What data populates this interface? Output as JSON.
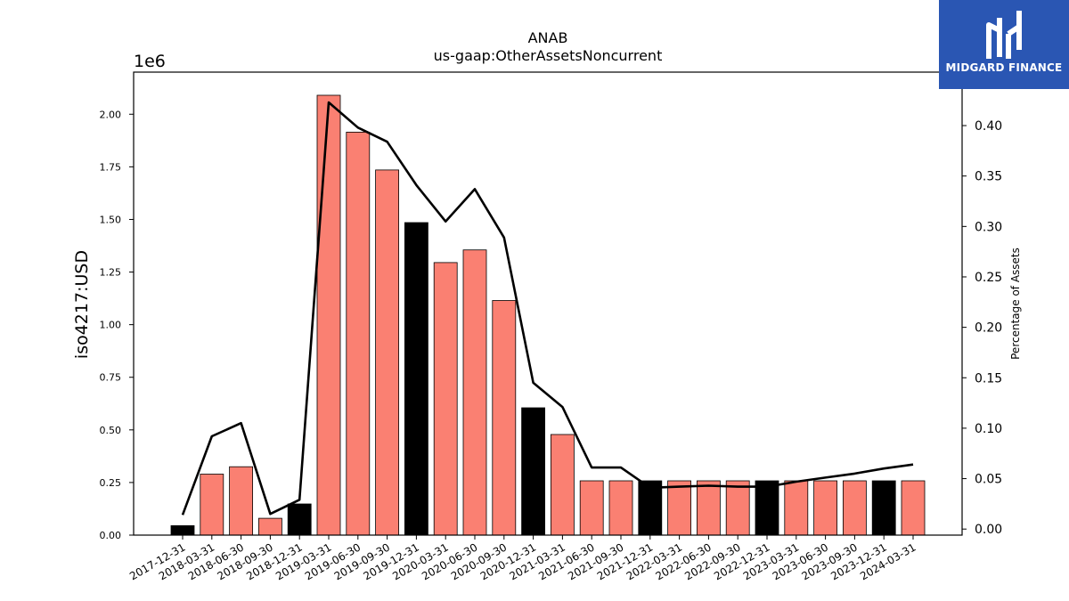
{
  "chart_data": {
    "type": "bar",
    "title": "ANAB",
    "subtitle": "us-gaap:OtherAssetsNoncurrent",
    "ylabel": "iso4217:USD",
    "y2label": "Percentage of Assets",
    "y_offset_text": "1e6",
    "ylim": [
      0,
      2200000
    ],
    "y2lim": [
      -0.006,
      0.453
    ],
    "yticks": [
      0,
      250000,
      500000,
      750000,
      1000000,
      1250000,
      1500000,
      1750000,
      2000000
    ],
    "yticklabels": [
      "0.00",
      "0.25",
      "0.50",
      "0.75",
      "1.00",
      "1.25",
      "1.50",
      "1.75",
      "2.00"
    ],
    "y2ticks": [
      0,
      0.05,
      0.1,
      0.15,
      0.2,
      0.25,
      0.3,
      0.35,
      0.4
    ],
    "y2ticklabels": [
      "0.00",
      "0.05",
      "0.10",
      "0.15",
      "0.20",
      "0.25",
      "0.30",
      "0.35",
      "0.40"
    ],
    "categories": [
      "2017-12-31",
      "2018-03-31",
      "2018-06-30",
      "2018-09-30",
      "2018-12-31",
      "2019-03-31",
      "2019-06-30",
      "2019-09-30",
      "2019-12-31",
      "2020-03-31",
      "2020-06-30",
      "2020-09-30",
      "2020-12-31",
      "2021-03-31",
      "2021-06-30",
      "2021-09-30",
      "2021-12-31",
      "2022-03-31",
      "2022-06-30",
      "2022-09-30",
      "2022-12-31",
      "2023-03-31",
      "2023-06-30",
      "2023-09-30",
      "2023-12-31",
      "2024-03-31"
    ],
    "series": [
      {
        "kind": "bar",
        "values": [
          45000,
          290000,
          325000,
          80000,
          148000,
          2090000,
          1915000,
          1735000,
          1485000,
          1295000,
          1355000,
          1115000,
          605000,
          478000,
          258000,
          258000,
          258000,
          258000,
          258000,
          258000,
          258000,
          258000,
          258000,
          258000,
          258000,
          258000
        ],
        "colors": [
          "#000000",
          "#fa8072",
          "#fa8072",
          "#fa8072",
          "#000000",
          "#fa8072",
          "#fa8072",
          "#fa8072",
          "#000000",
          "#fa8072",
          "#fa8072",
          "#fa8072",
          "#000000",
          "#fa8072",
          "#fa8072",
          "#fa8072",
          "#000000",
          "#fa8072",
          "#fa8072",
          "#fa8072",
          "#000000",
          "#fa8072",
          "#fa8072",
          "#fa8072",
          "#000000",
          "#fa8072"
        ]
      },
      {
        "kind": "line",
        "axis": "right",
        "color": "#000000",
        "values": [
          0.014,
          0.092,
          0.105,
          0.015,
          0.029,
          0.423,
          0.398,
          0.384,
          0.341,
          0.305,
          0.337,
          0.289,
          0.145,
          0.121,
          0.061,
          0.061,
          0.041,
          0.042,
          0.043,
          0.042,
          0.042,
          0.047,
          0.051,
          0.055,
          0.06,
          0.064
        ]
      }
    ],
    "grid": false
  },
  "logo": {
    "text": "MIDGARD FINANCE",
    "bg": "#2a56b3"
  }
}
